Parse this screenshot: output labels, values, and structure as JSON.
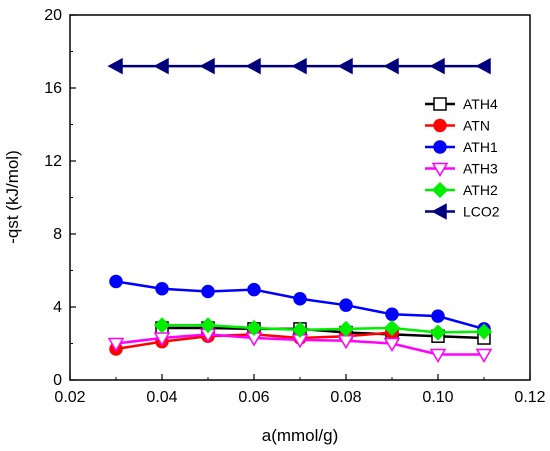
{
  "chart_data": {
    "type": "line",
    "xlabel": "a(mmol/g)",
    "ylabel": "-qst (kJ/mol)",
    "xlim": [
      0.02,
      0.12
    ],
    "ylim": [
      0,
      20
    ],
    "xticks": [
      "0.02",
      "0.04",
      "0.06",
      "0.08",
      "0.10",
      "0.12"
    ],
    "yticks": [
      "0",
      "4",
      "8",
      "12",
      "16",
      "20"
    ],
    "legend_position": "right",
    "series": [
      {
        "name": "ATH4",
        "color": "#000000",
        "marker": "square-open",
        "x": [
          0.04,
          0.05,
          0.06,
          0.07,
          0.08,
          0.09,
          0.1,
          0.11
        ],
        "y": [
          2.85,
          2.85,
          2.8,
          2.8,
          2.6,
          2.5,
          2.4,
          2.3
        ]
      },
      {
        "name": "ATN",
        "color": "#ff0000",
        "marker": "circle",
        "x": [
          0.03,
          0.04,
          0.05,
          0.06,
          0.07,
          0.08,
          0.09
        ],
        "y": [
          1.7,
          2.1,
          2.4,
          2.5,
          2.3,
          2.4,
          2.6
        ]
      },
      {
        "name": "ATH1",
        "color": "#0000ff",
        "marker": "circle",
        "x": [
          0.03,
          0.04,
          0.05,
          0.06,
          0.07,
          0.08,
          0.09,
          0.1,
          0.11
        ],
        "y": [
          5.4,
          5.0,
          4.85,
          4.95,
          4.45,
          4.1,
          3.6,
          3.5,
          2.8
        ]
      },
      {
        "name": "ATH3",
        "color": "#ff00ff",
        "marker": "triangle-down-open",
        "x": [
          0.03,
          0.04,
          0.05,
          0.06,
          0.07,
          0.08,
          0.09,
          0.1,
          0.11
        ],
        "y": [
          2.0,
          2.3,
          2.5,
          2.3,
          2.2,
          2.15,
          2.0,
          1.4,
          1.4
        ]
      },
      {
        "name": "ATH2",
        "color": "#00ee00",
        "marker": "diamond",
        "x": [
          0.04,
          0.05,
          0.06,
          0.07,
          0.08,
          0.09,
          0.1,
          0.11
        ],
        "y": [
          3.0,
          3.0,
          2.85,
          2.75,
          2.8,
          2.85,
          2.6,
          2.65
        ]
      },
      {
        "name": "LCO2",
        "color": "#00007f",
        "marker": "triangle-left",
        "x": [
          0.03,
          0.04,
          0.05,
          0.06,
          0.07,
          0.08,
          0.09,
          0.1,
          0.11
        ],
        "y": [
          17.2,
          17.2,
          17.2,
          17.2,
          17.2,
          17.2,
          17.2,
          17.2,
          17.2
        ]
      }
    ]
  }
}
